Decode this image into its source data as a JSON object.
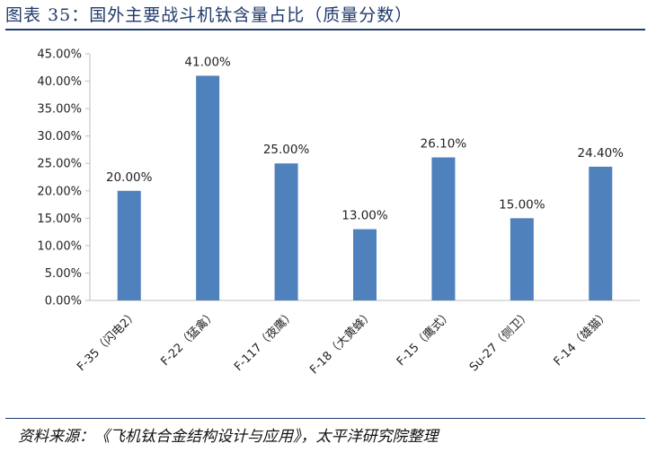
{
  "header": {
    "title": "图表 35：国外主要战斗机钛含量占比（质量分数）"
  },
  "footer": {
    "source": "资料来源：《飞机钛合金结构设计与应用》，太平洋研究院整理"
  },
  "chart_data": {
    "type": "bar",
    "categories": [
      "F-35（闪电2）",
      "F-22（猛禽）",
      "F-117（夜鹰）",
      "F-18（大黄蜂）",
      "F-15（鹰式）",
      "Su-27（侧卫）",
      "F-14（雄猫）"
    ],
    "values": [
      20,
      41,
      25,
      13,
      26.1,
      15,
      24.4
    ],
    "data_labels": [
      "20.00%",
      "41.00%",
      "25.00%",
      "13.00%",
      "26.10%",
      "15.00%",
      "24.40%"
    ],
    "y_ticks": [
      "0.00%",
      "5.00%",
      "10.00%",
      "15.00%",
      "20.00%",
      "25.00%",
      "30.00%",
      "35.00%",
      "40.00%",
      "45.00%"
    ],
    "ylim": [
      0,
      45
    ],
    "bar_color": "#4f81bd",
    "grid": false,
    "legend": "none"
  }
}
